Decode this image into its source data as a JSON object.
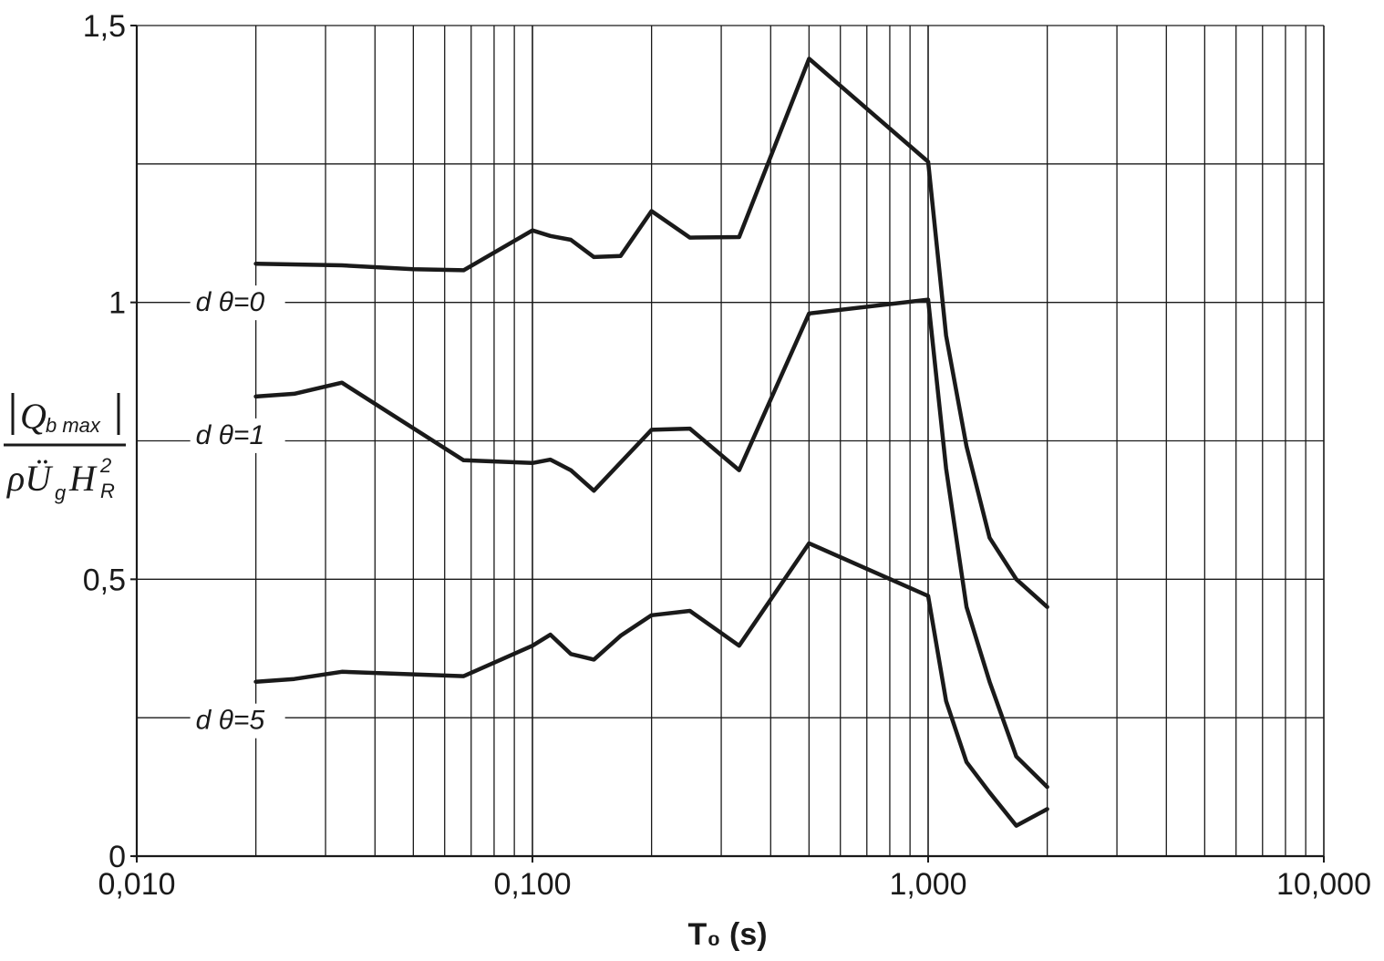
{
  "chart_data": {
    "type": "line",
    "title": "",
    "xlabel": "T₀ (s)",
    "ylabel": "|Q_b max| / ρÜ_g H_R²",
    "x_scale": "log",
    "xlim": [
      0.01,
      10
    ],
    "ylim": [
      0,
      1.5
    ],
    "grid": true,
    "x_ticks": [
      {
        "value": 0.01,
        "label": "0,010"
      },
      {
        "value": 0.1,
        "label": "0,100"
      },
      {
        "value": 1,
        "label": "1,000"
      },
      {
        "value": 10,
        "label": "10,000"
      }
    ],
    "y_ticks": [
      {
        "value": 0,
        "label": "0"
      },
      {
        "value": 0.5,
        "label": "0,5"
      },
      {
        "value": 1,
        "label": "1"
      },
      {
        "value": 1.5,
        "label": "1,5"
      }
    ],
    "y_gridlines": [
      0.25,
      0.5,
      0.75,
      1.0,
      1.25,
      1.5
    ],
    "series": [
      {
        "name": "d θ=0",
        "x": [
          0.02,
          0.033,
          0.05,
          0.067,
          0.1,
          0.111,
          0.125,
          0.143,
          0.167,
          0.2,
          0.25,
          0.333,
          0.5,
          1.0,
          1.11,
          1.25,
          1.43,
          1.67,
          2.0
        ],
        "y": [
          1.07,
          1.067,
          1.06,
          1.058,
          1.13,
          1.12,
          1.113,
          1.082,
          1.084,
          1.165,
          1.117,
          1.118,
          1.44,
          1.254,
          0.94,
          0.74,
          0.575,
          0.5,
          0.45
        ]
      },
      {
        "name": "d θ=1",
        "x": [
          0.02,
          0.025,
          0.033,
          0.067,
          0.1,
          0.111,
          0.125,
          0.143,
          0.2,
          0.25,
          0.333,
          0.5,
          1.0,
          1.11,
          1.25,
          1.43,
          1.67,
          2.0
        ],
        "y": [
          0.83,
          0.835,
          0.855,
          0.715,
          0.71,
          0.716,
          0.697,
          0.66,
          0.77,
          0.772,
          0.697,
          0.98,
          1.005,
          0.7,
          0.45,
          0.315,
          0.18,
          0.125
        ]
      },
      {
        "name": "d θ=5",
        "x": [
          0.02,
          0.025,
          0.033,
          0.067,
          0.1,
          0.111,
          0.125,
          0.143,
          0.167,
          0.2,
          0.25,
          0.333,
          0.5,
          1.0,
          1.11,
          1.25,
          1.43,
          1.67,
          2.0
        ],
        "y": [
          0.315,
          0.32,
          0.333,
          0.325,
          0.38,
          0.4,
          0.365,
          0.355,
          0.398,
          0.435,
          0.443,
          0.38,
          0.565,
          0.47,
          0.28,
          0.17,
          0.115,
          0.055,
          0.085
        ]
      }
    ]
  }
}
